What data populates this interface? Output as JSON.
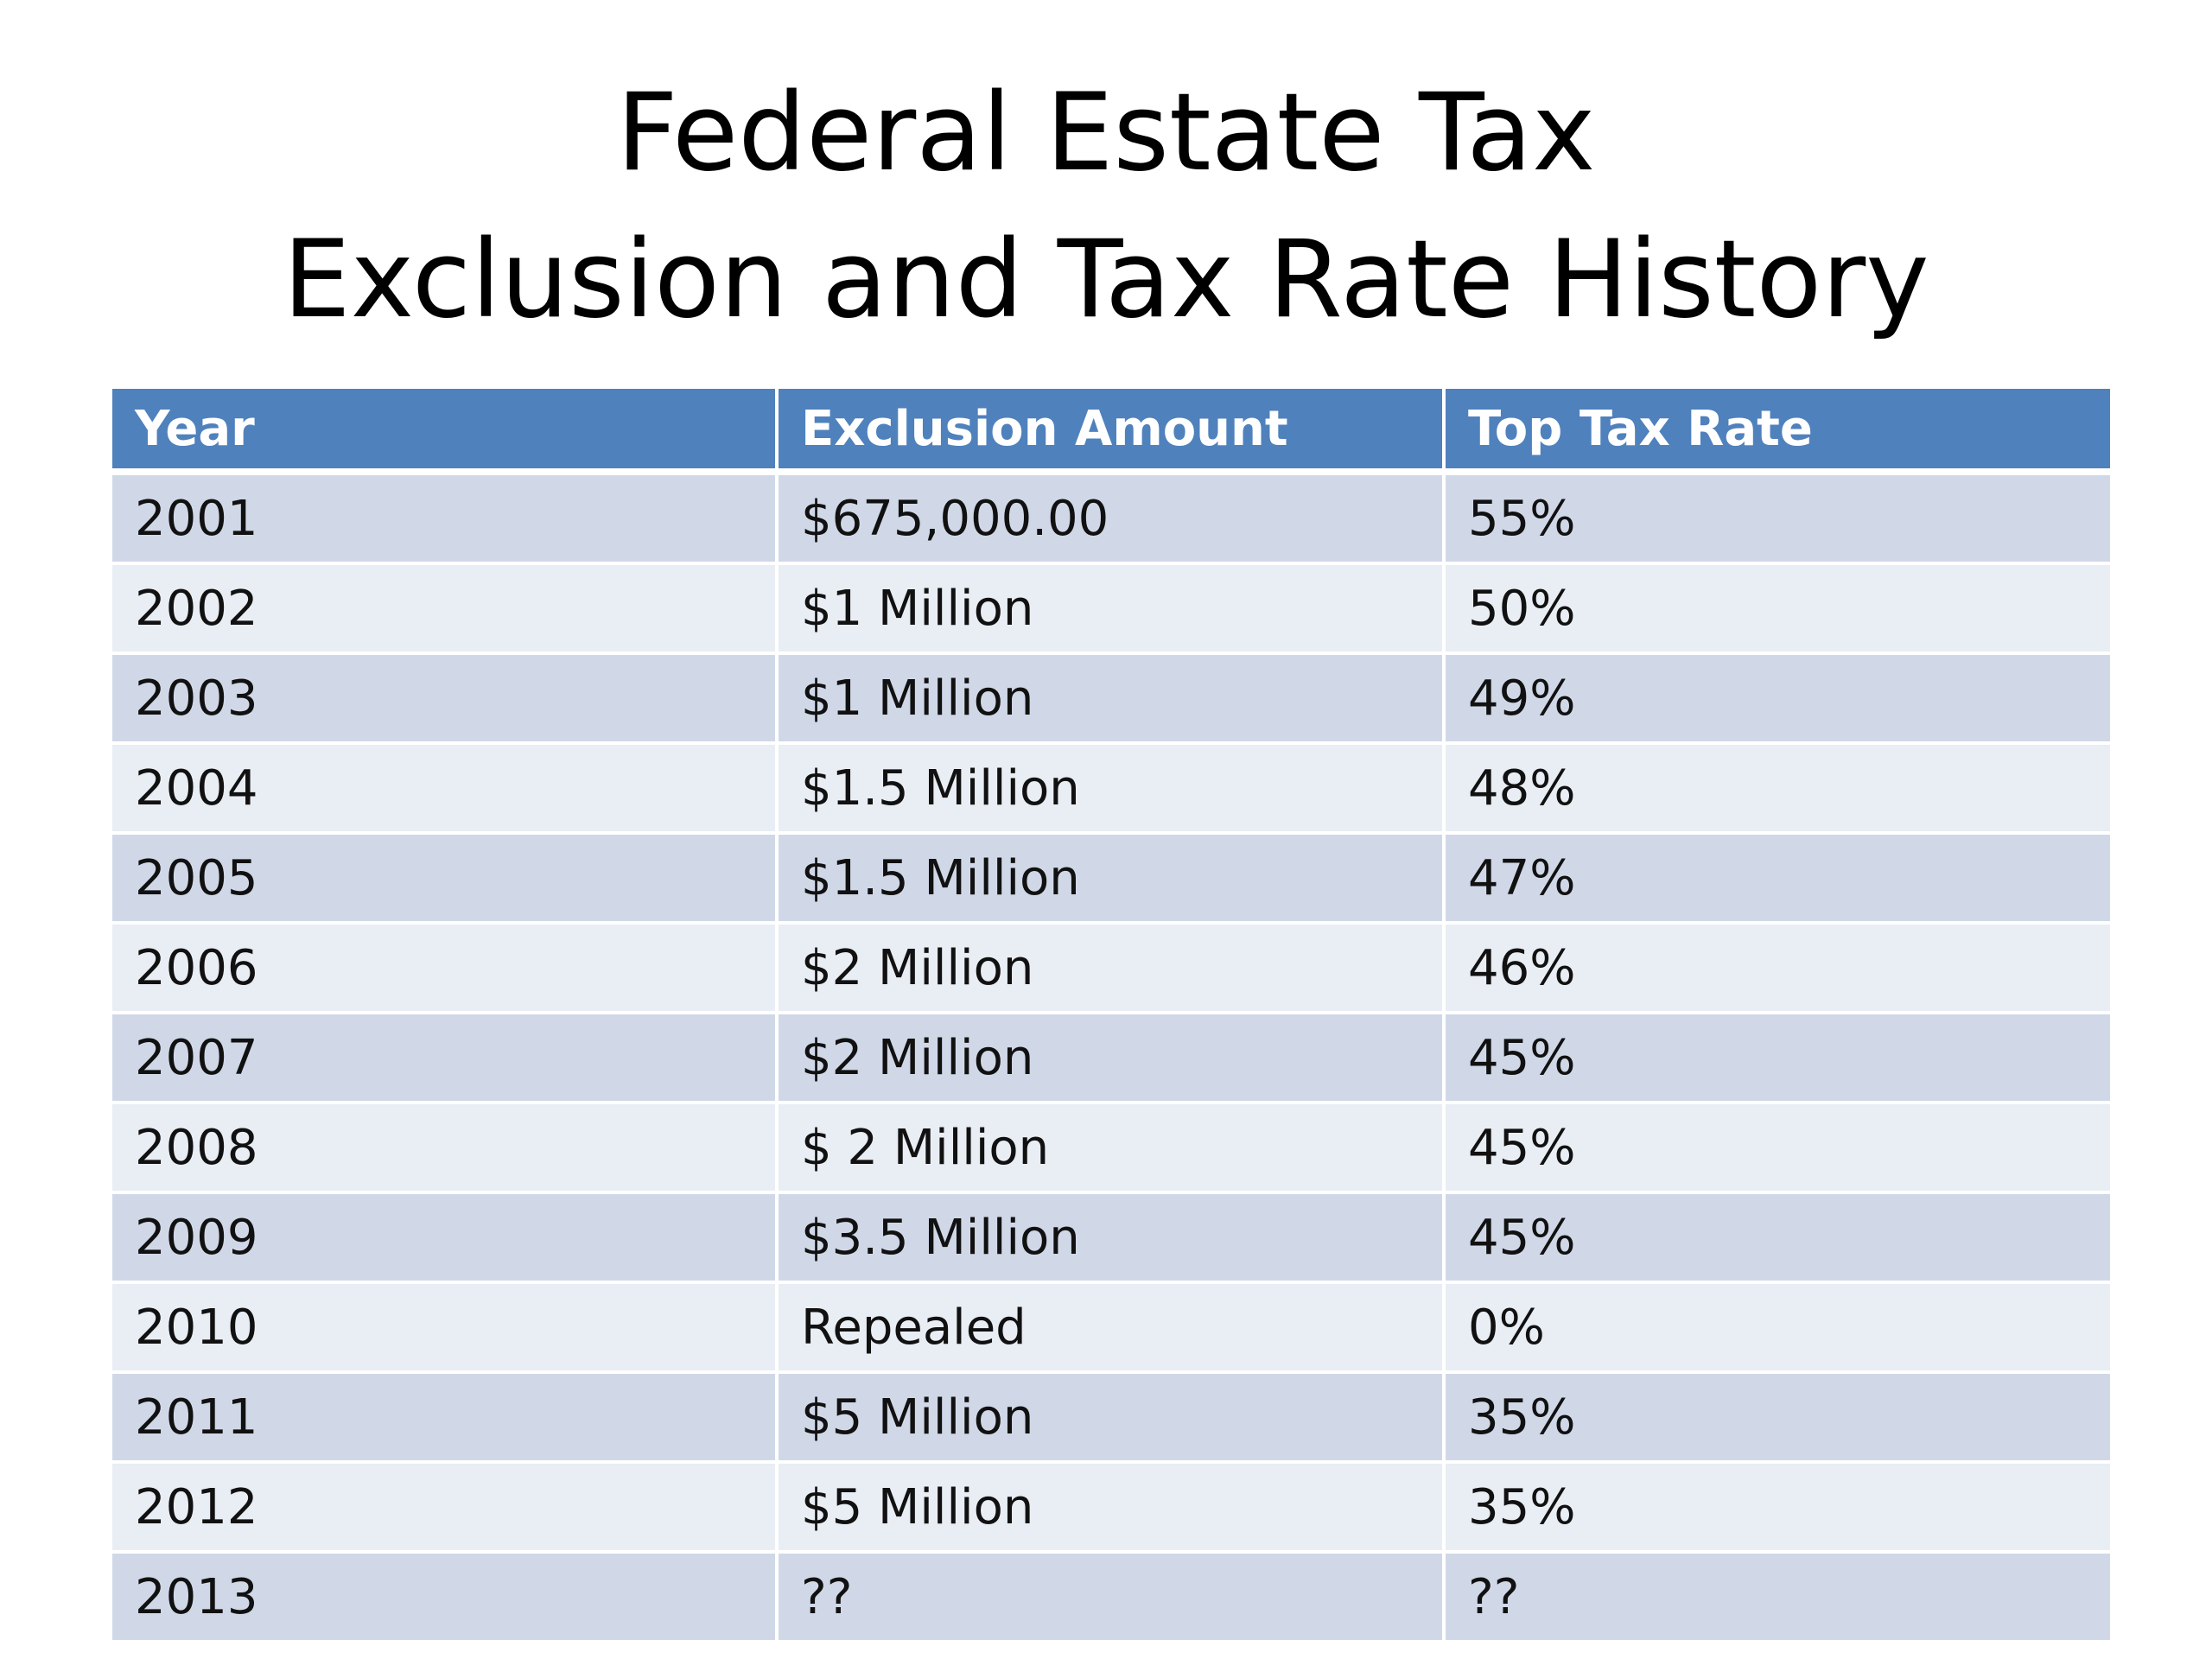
{
  "title": {
    "line1": "Federal Estate Tax",
    "line2": "Exclusion and Tax Rate History"
  },
  "table": {
    "headers": [
      "Year",
      "Exclusion Amount",
      "Top Tax Rate"
    ],
    "rows": [
      {
        "year": "2001",
        "exclusion": "$675,000.00",
        "rate": "55%"
      },
      {
        "year": "2002",
        "exclusion": "$1 Million",
        "rate": "50%"
      },
      {
        "year": "2003",
        "exclusion": "$1 Million",
        "rate": "49%"
      },
      {
        "year": "2004",
        "exclusion": "$1.5 Million",
        "rate": "48%"
      },
      {
        "year": "2005",
        "exclusion": "$1.5 Million",
        "rate": "47%"
      },
      {
        "year": "2006",
        "exclusion": "$2 Million",
        "rate": "46%"
      },
      {
        "year": "2007",
        "exclusion": "$2 Million",
        "rate": "45%"
      },
      {
        "year": "2008",
        "exclusion": "$ 2 Million",
        "rate": "45%"
      },
      {
        "year": "2009",
        "exclusion": "$3.5 Million",
        "rate": "45%"
      },
      {
        "year": "2010",
        "exclusion": "Repealed",
        "rate": "0%"
      },
      {
        "year": "2011",
        "exclusion": "$5 Million",
        "rate": "35%"
      },
      {
        "year": "2012",
        "exclusion": "$5 Million",
        "rate": "35%"
      },
      {
        "year": "2013",
        "exclusion": "??",
        "rate": "??"
      }
    ]
  },
  "colors": {
    "header_bg": "#4f81bd",
    "row_odd": "#d0d8e8",
    "row_even": "#e9edf4"
  }
}
